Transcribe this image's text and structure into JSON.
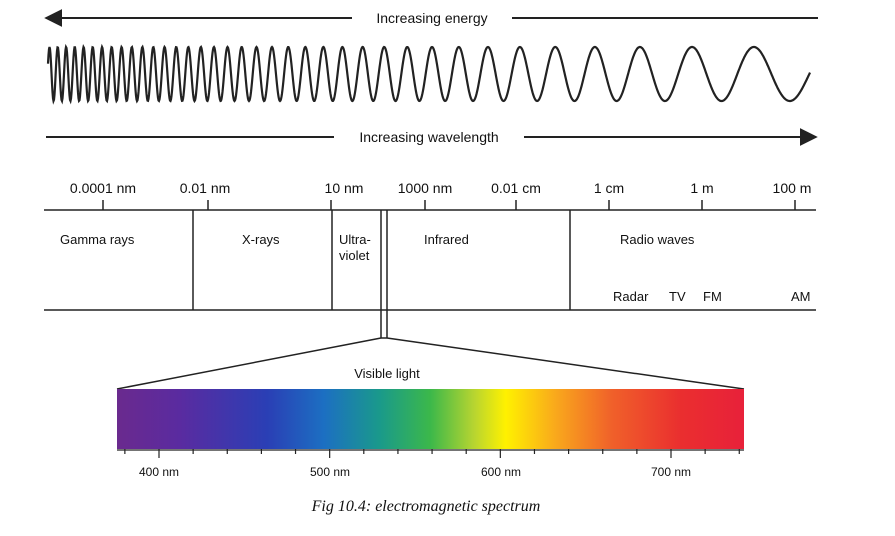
{
  "diagram": {
    "energy_arrow": {
      "label": "Increasing energy"
    },
    "wavelength_arrow": {
      "label": "Increasing wavelength"
    },
    "scale_ticks": [
      {
        "label": "0.0001 nm"
      },
      {
        "label": "0.01 nm"
      },
      {
        "label": "10 nm"
      },
      {
        "label": "1000 nm"
      },
      {
        "label": "0.01 cm"
      },
      {
        "label": "1 cm"
      },
      {
        "label": "1 m"
      },
      {
        "label": "100 m"
      }
    ],
    "regions": {
      "gamma": "Gamma rays",
      "xray": "X-rays",
      "uv_line1": "Ultra-",
      "uv_line2": "violet",
      "infrared": "Infrared",
      "radio": "Radio waves"
    },
    "radio_bands": {
      "radar": "Radar",
      "tv": "TV",
      "fm": "FM",
      "am": "AM"
    },
    "visible": {
      "label": "Visible light",
      "ticks": [
        {
          "label": "400 nm"
        },
        {
          "label": "500 nm"
        },
        {
          "label": "600 nm"
        },
        {
          "label": "700 nm"
        }
      ],
      "colors": [
        "#6a2a8e",
        "#5a2ba0",
        "#2a3fb5",
        "#1c6fc2",
        "#1a9a8a",
        "#3cb84a",
        "#b8d530",
        "#fff100",
        "#f9a81c",
        "#f0602a",
        "#ea2e2f",
        "#e8213a"
      ]
    },
    "caption": "Fig 10.4: electromagnetic spectrum",
    "colors": {
      "line": "#222222",
      "caption": "#2f8fcf"
    }
  }
}
